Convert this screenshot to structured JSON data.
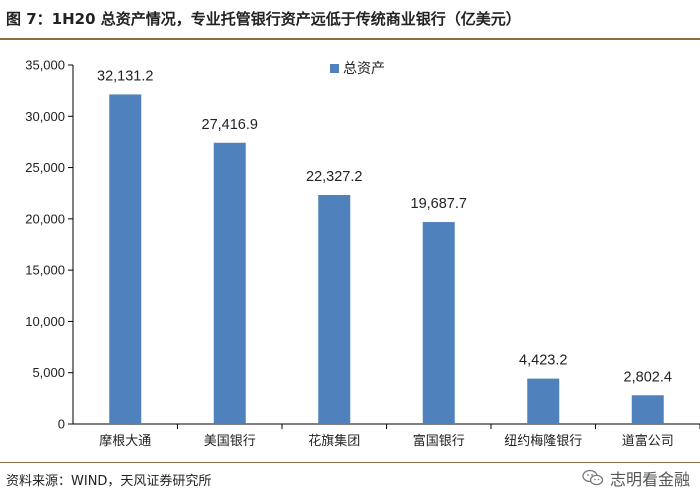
{
  "figure_title": "图 7：1H20 总资产情况，专业托管银行资产远低于传统商业银行（亿美元）",
  "source_note": "资料来源：WIND，天风证券研究所",
  "watermark": "志明看金融",
  "watermark_icon": "wechat-icon",
  "colors": {
    "bar": "#4f81bd",
    "rule": "#8a6d46",
    "axis": "#000000"
  },
  "chart_data": {
    "type": "bar",
    "title": "",
    "xlabel": "",
    "ylabel": "",
    "categories": [
      "摩根大通",
      "美国银行",
      "花旗集团",
      "富国银行",
      "纽约梅隆银行",
      "道富公司"
    ],
    "series": [
      {
        "name": "总资产",
        "values": [
          32131.2,
          27416.9,
          22327.2,
          19687.7,
          4423.2,
          2802.4
        ]
      }
    ],
    "data_labels": [
      "32,131.2",
      "27,416.9",
      "22,327.2",
      "19,687.7",
      "4,423.2",
      "2,802.4"
    ],
    "yticks": [
      0,
      5000,
      10000,
      15000,
      20000,
      25000,
      30000,
      35000
    ],
    "ytick_labels": [
      "0",
      "5,000",
      "10,000",
      "15,000",
      "20,000",
      "25,000",
      "30,000",
      "35,000"
    ],
    "ylim": [
      0,
      35000
    ],
    "grid": false,
    "legend_position": "top-center"
  }
}
